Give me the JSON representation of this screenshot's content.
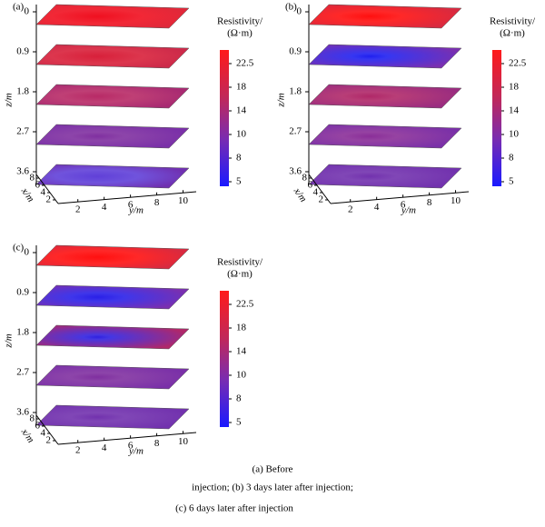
{
  "chart_data": [
    {
      "type": "slices",
      "label": "(a)",
      "zlabel": "z/m",
      "xlabel": "x/m",
      "ylabel": "y/m",
      "zlim": [
        0,
        3.6
      ],
      "zticks": [
        0,
        0.9,
        1.8,
        2.7,
        3.6
      ],
      "xlim": [
        1,
        9
      ],
      "xticks": [
        8,
        6,
        4,
        2
      ],
      "ylim": [
        0.5,
        11
      ],
      "yticks": [
        2,
        4,
        6,
        8,
        10
      ],
      "colorbar_title": [
        "Resistivity/",
        "(Ω·m)"
      ],
      "colorbar_ticks": [
        22.5,
        18,
        14,
        10,
        8,
        5
      ]
    },
    {
      "type": "slices",
      "label": "(b)",
      "zlabel": "z/m",
      "xlabel": "x/m",
      "ylabel": "y/m",
      "zlim": [
        0,
        3.6
      ],
      "zticks": [
        0,
        0.9,
        1.8,
        2.7,
        3.6
      ],
      "xlim": [
        1,
        9
      ],
      "xticks": [
        8,
        6,
        4,
        2
      ],
      "ylim": [
        0.5,
        11
      ],
      "yticks": [
        2,
        4,
        6,
        8,
        10
      ],
      "colorbar_title": [
        "Resistivity/",
        "(Ω·m)"
      ],
      "colorbar_ticks": [
        22.5,
        18,
        14,
        10,
        8,
        5
      ]
    },
    {
      "type": "slices",
      "label": "(c)",
      "zlabel": "z/m",
      "xlabel": "x/m",
      "ylabel": "y/m",
      "zlim": [
        0,
        3.6
      ],
      "zticks": [
        0,
        0.9,
        1.8,
        2.7,
        3.6
      ],
      "xlim": [
        1,
        9
      ],
      "xticks": [
        8,
        6,
        4,
        2
      ],
      "ylim": [
        0.5,
        11
      ],
      "yticks": [
        2,
        4,
        6,
        8,
        10
      ],
      "colorbar_title": [
        "Resistivity/",
        "(Ω·m)"
      ],
      "colorbar_ticks": [
        22.5,
        18,
        14,
        10,
        8,
        5
      ]
    }
  ],
  "caption": [
    "(a) Before",
    "injection; (b) 3 days later after injection;",
    "(c) 6 days later after injection"
  ]
}
